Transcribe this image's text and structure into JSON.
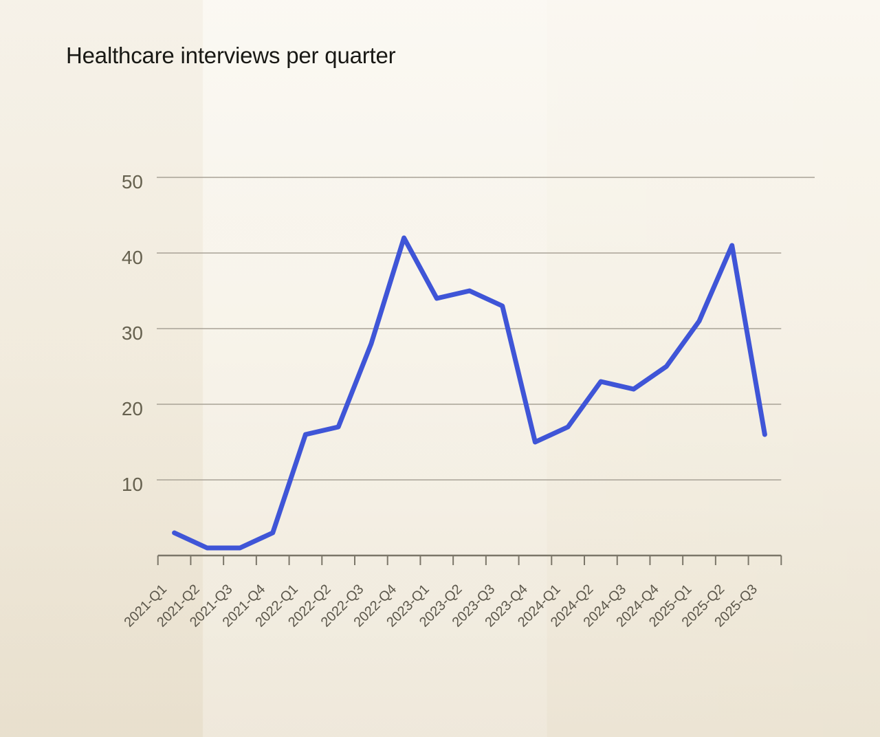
{
  "chart_data": {
    "type": "line",
    "title": "Healthcare interviews per quarter",
    "categories": [
      "2021-Q1",
      "2021-Q2",
      "2021-Q3",
      "2021-Q4",
      "2022-Q1",
      "2022-Q2",
      "2022-Q3",
      "2022-Q4",
      "2023-Q1",
      "2023-Q2",
      "2023-Q3",
      "2023-Q4",
      "2024-Q1",
      "2024-Q2",
      "2024-Q3",
      "2024-Q4",
      "2025-Q1",
      "2025-Q2",
      "2025-Q3"
    ],
    "series": [
      {
        "name": "Healthcare interviews",
        "values": [
          3,
          1,
          1,
          3,
          16,
          17,
          28,
          42,
          34,
          35,
          33,
          15,
          17,
          23,
          22,
          25,
          31,
          41,
          16
        ]
      }
    ],
    "xlabel": "",
    "ylabel": "",
    "ylim": [
      0,
      50
    ],
    "yticks": [
      10,
      20,
      30,
      40,
      50
    ],
    "grid": "horizontal-only",
    "legend_position": "none",
    "x_tick_label_rotation_deg": -45
  },
  "colors": {
    "line": "#3F55D7",
    "gridline": "#a8a296",
    "axis": "#7b7669",
    "tick_label": "#66614f",
    "x_tick_label": "#5b564a",
    "title": "#191915",
    "background_top": "#faf7f0",
    "background_bottom": "#ebe3d2"
  }
}
